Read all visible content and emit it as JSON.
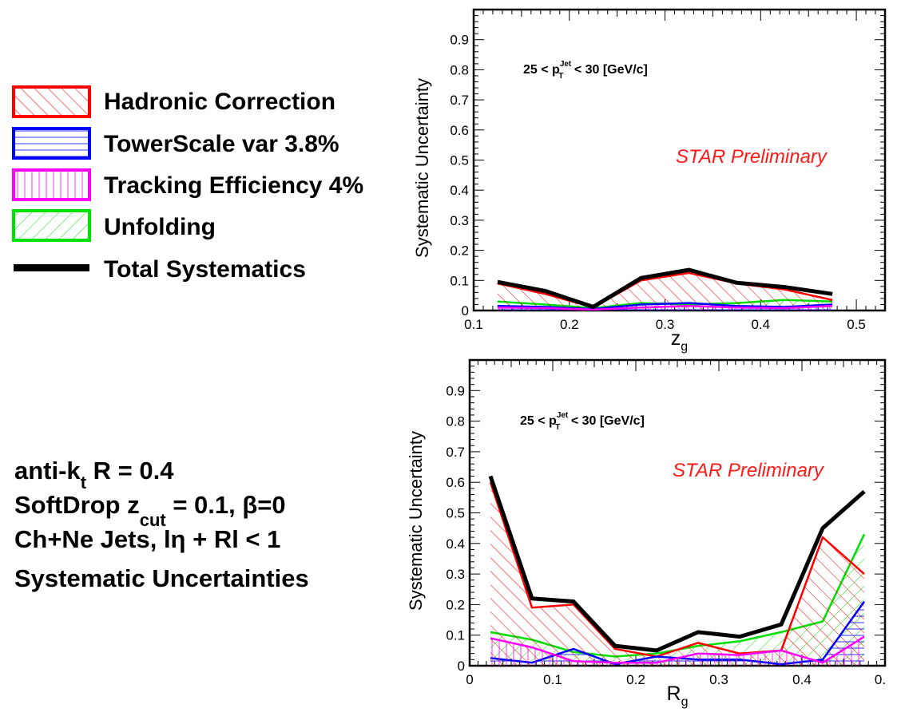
{
  "legend": {
    "items": [
      {
        "label": "Hadronic Correction",
        "color": "#ff0000",
        "style": "hatch-diag"
      },
      {
        "label": "TowerScale var 3.8%",
        "color": "#0000ff",
        "style": "hatch-horizontal"
      },
      {
        "label": "Tracking Efficiency 4%",
        "color": "#ff00ff",
        "style": "hatch-vertical"
      },
      {
        "label": "Unfolding",
        "color": "#00e000",
        "style": "hatch-diag-rev"
      },
      {
        "label": "Total Systematics",
        "color": "#000000",
        "style": "line"
      }
    ]
  },
  "info": {
    "line1_main": "anti-k",
    "line1_sub": "t",
    "line1_rest": " R = 0.4",
    "line2_main": "SoftDrop z",
    "line2_sub": "cut",
    "line2_rest": " = 0.1,  β=0",
    "line3": "Ch+Ne Jets, lη + Rl < 1",
    "line4": "Systematic Uncertainties"
  },
  "chart_data": [
    {
      "type": "line",
      "title": "",
      "xlabel": "z",
      "xlabel_sub": "g",
      "ylabel": "Systematic Uncertainty",
      "xlim": [
        0.1,
        0.53
      ],
      "ylim": [
        0,
        1
      ],
      "xticks": [
        "0.1",
        "0.2",
        "0.3",
        "0.4",
        "0.5"
      ],
      "yticks": [
        "0",
        "0.1",
        "0.2",
        "0.3",
        "0.4",
        "0.5",
        "0.6",
        "0.7",
        "0.8",
        "0.9"
      ],
      "annotation_pt": {
        "pre": "25 < p",
        "sup": "Jet",
        "sub": "T",
        "post": " < 30 [GeV/c]"
      },
      "annotation_prelim": "STAR Preliminary",
      "x": [
        0.125,
        0.175,
        0.225,
        0.275,
        0.325,
        0.375,
        0.425,
        0.475
      ],
      "series": [
        {
          "name": "Hadronic Correction",
          "color": "#ff0000",
          "values": [
            0.09,
            0.055,
            0.01,
            0.1,
            0.125,
            0.09,
            0.07,
            0.035
          ]
        },
        {
          "name": "TowerScale var 3.8%",
          "color": "#0000ff",
          "values": [
            0.015,
            0.012,
            0.005,
            0.02,
            0.025,
            0.015,
            0.012,
            0.02
          ]
        },
        {
          "name": "Tracking Efficiency 4%",
          "color": "#ff00ff",
          "values": [
            0.01,
            0.008,
            0.003,
            0.01,
            0.015,
            0.01,
            0.008,
            0.015
          ]
        },
        {
          "name": "Unfolding",
          "color": "#00e000",
          "values": [
            0.03,
            0.02,
            0.008,
            0.025,
            0.02,
            0.025,
            0.035,
            0.03
          ]
        },
        {
          "name": "Total Systematics",
          "color": "#000000",
          "values": [
            0.095,
            0.065,
            0.012,
            0.108,
            0.135,
            0.092,
            0.078,
            0.055
          ]
        }
      ]
    },
    {
      "type": "line",
      "title": "",
      "xlabel": "R",
      "xlabel_sub": "g",
      "ylabel": "Systematic Uncertainty",
      "xlim": [
        0,
        0.5
      ],
      "ylim": [
        0,
        1
      ],
      "xticks": [
        "0",
        "0.1",
        "0.2",
        "0.3",
        "0.4",
        "0."
      ],
      "yticks": [
        "0",
        "0.1",
        "0.2",
        "0.3",
        "0.4",
        "0.5",
        "0.6",
        "0.7",
        "0.8",
        "0.9"
      ],
      "annotation_pt": {
        "pre": "25 < p",
        "sup": "Jet",
        "sub": "T",
        "post": " < 30 [GeV/c]"
      },
      "annotation_prelim": "STAR Preliminary",
      "x": [
        0.025,
        0.075,
        0.125,
        0.175,
        0.225,
        0.275,
        0.325,
        0.375,
        0.425,
        0.475
      ],
      "series": [
        {
          "name": "Hadronic Correction",
          "color": "#ff0000",
          "values": [
            0.6,
            0.19,
            0.2,
            0.055,
            0.03,
            0.075,
            0.04,
            0.05,
            0.42,
            0.3
          ]
        },
        {
          "name": "TowerScale var 3.8%",
          "color": "#0000ff",
          "values": [
            0.025,
            0.01,
            0.055,
            0.005,
            0.03,
            0.02,
            0.02,
            0.005,
            0.02,
            0.21
          ]
        },
        {
          "name": "Tracking Efficiency 4%",
          "color": "#ff00ff",
          "values": [
            0.09,
            0.06,
            0.015,
            0.01,
            0.01,
            0.04,
            0.035,
            0.05,
            0.01,
            0.095
          ]
        },
        {
          "name": "Unfolding",
          "color": "#00e000",
          "values": [
            0.11,
            0.085,
            0.045,
            0.03,
            0.04,
            0.065,
            0.08,
            0.11,
            0.145,
            0.43
          ]
        },
        {
          "name": "Total Systematics",
          "color": "#000000",
          "values": [
            0.62,
            0.22,
            0.21,
            0.065,
            0.05,
            0.11,
            0.095,
            0.135,
            0.45,
            0.57
          ]
        }
      ]
    }
  ]
}
